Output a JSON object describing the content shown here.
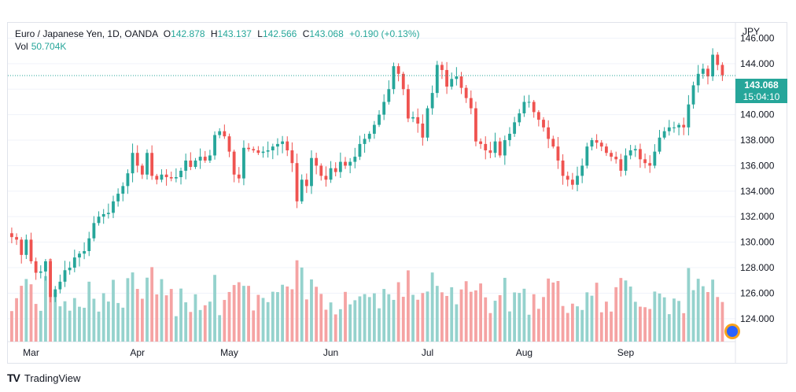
{
  "legend": {
    "symbol": "Euro / Japanese Yen, 1D, OANDA",
    "open_label": "O",
    "open": "142.878",
    "high_label": "H",
    "high": "143.137",
    "low_label": "L",
    "low": "142.566",
    "close_label": "C",
    "close": "143.068",
    "change": "+0.190 (+0.13%)",
    "vol_label": "Vol",
    "vol": "50.704K"
  },
  "axis_unit": "JPY",
  "last_price": "143.068",
  "countdown": "15:04:10",
  "brand": "TradingView",
  "colors": {
    "up": "#26a69a",
    "down": "#ef5350",
    "up_vol": "#95d2cd",
    "down_vol": "#f5a3a3",
    "grid": "#f0f3fa"
  },
  "chart_data": {
    "type": "candlestick",
    "y_ticks": [
      "146.000",
      "144.000",
      "142.000",
      "140.000",
      "138.000",
      "136.000",
      "134.000",
      "132.000",
      "130.000",
      "128.000",
      "126.000",
      "124.000"
    ],
    "ylim": [
      122.2,
      147.2
    ],
    "x_labels": [
      "Mar",
      "Apr",
      "May",
      "Jun",
      "Jul",
      "Aug",
      "Sep"
    ],
    "last_close": 143.068,
    "x_label_index": [
      4,
      26,
      45,
      66,
      86,
      106,
      127
    ],
    "closes": [
      130.4,
      130.2,
      129.0,
      130.2,
      128.5,
      127.6,
      127.7,
      128.5,
      125.7,
      126.3,
      126.9,
      127.8,
      128.0,
      128.8,
      129.1,
      129.3,
      130.3,
      131.5,
      132.0,
      132.2,
      132.3,
      133.2,
      133.8,
      134.4,
      135.4,
      137.0,
      136.0,
      135.3,
      137.0,
      135.2,
      134.9,
      135.3,
      135.1,
      135.0,
      135.1,
      135.6,
      136.4,
      135.9,
      136.4,
      136.7,
      136.4,
      136.8,
      138.4,
      138.7,
      138.3,
      137.1,
      135.3,
      135.0,
      137.4,
      137.3,
      137.2,
      137.0,
      137.1,
      137.2,
      137.5,
      137.7,
      137.9,
      137.2,
      136.2,
      133.2,
      134.9,
      134.4,
      136.6,
      136.0,
      135.2,
      134.9,
      135.8,
      135.5,
      136.3,
      136.0,
      136.3,
      136.7,
      137.7,
      138.1,
      138.5,
      139.2,
      140.0,
      141.0,
      142.0,
      143.8,
      143.2,
      142.0,
      139.7,
      139.8,
      139.3,
      138.2,
      140.5,
      141.7,
      143.9,
      143.5,
      142.2,
      142.8,
      143.0,
      142.1,
      141.3,
      140.5,
      137.9,
      137.7,
      137.2,
      137.0,
      137.9,
      136.8,
      138.0,
      138.5,
      139.4,
      140.1,
      141.0,
      141.0,
      140.2,
      139.6,
      139.0,
      138.1,
      137.5,
      136.4,
      135.2,
      134.9,
      134.5,
      135.2,
      136.0,
      137.5,
      138.0,
      137.8,
      137.5,
      137.0,
      136.7,
      136.5,
      135.6,
      136.8,
      137.2,
      137.3,
      136.5,
      136.2,
      136.0,
      137.1,
      138.2,
      138.7,
      139.0,
      139.0,
      139.2,
      139.0,
      140.8,
      142.3,
      143.2,
      143.6,
      143.0,
      144.7,
      143.9,
      143.1
    ]
  }
}
